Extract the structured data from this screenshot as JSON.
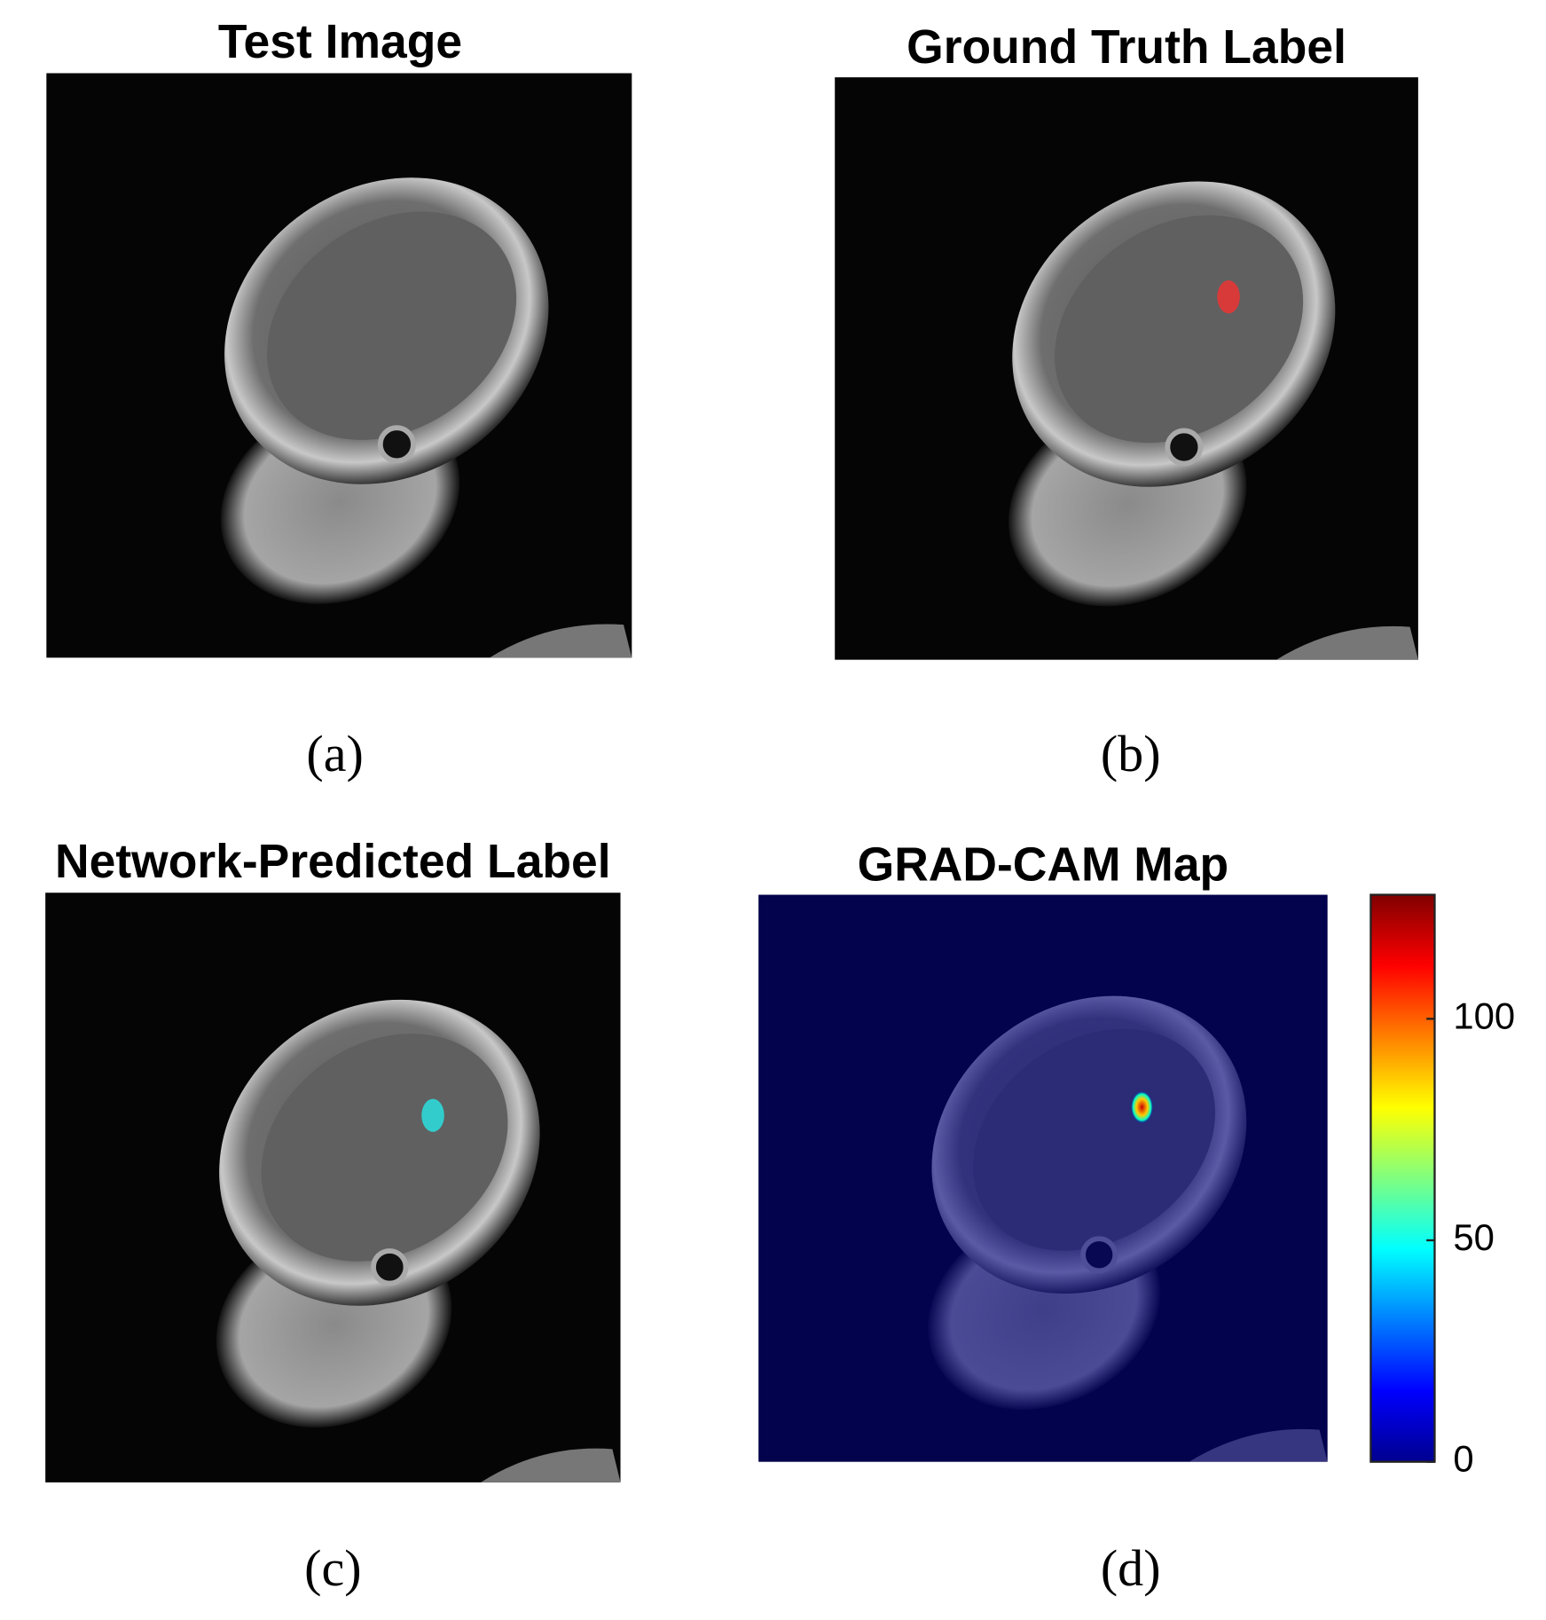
{
  "panels": [
    {
      "title": "Test Image",
      "caption": "(a)"
    },
    {
      "title": "Ground Truth Label",
      "caption": "(b)"
    },
    {
      "title": "Network-Predicted Label",
      "caption": "(c)"
    },
    {
      "title": "GRAD-CAM Map",
      "caption": "(d)"
    }
  ],
  "colorbar": {
    "lim": [
      0,
      128
    ],
    "ticks": [
      0,
      50,
      100
    ]
  }
}
